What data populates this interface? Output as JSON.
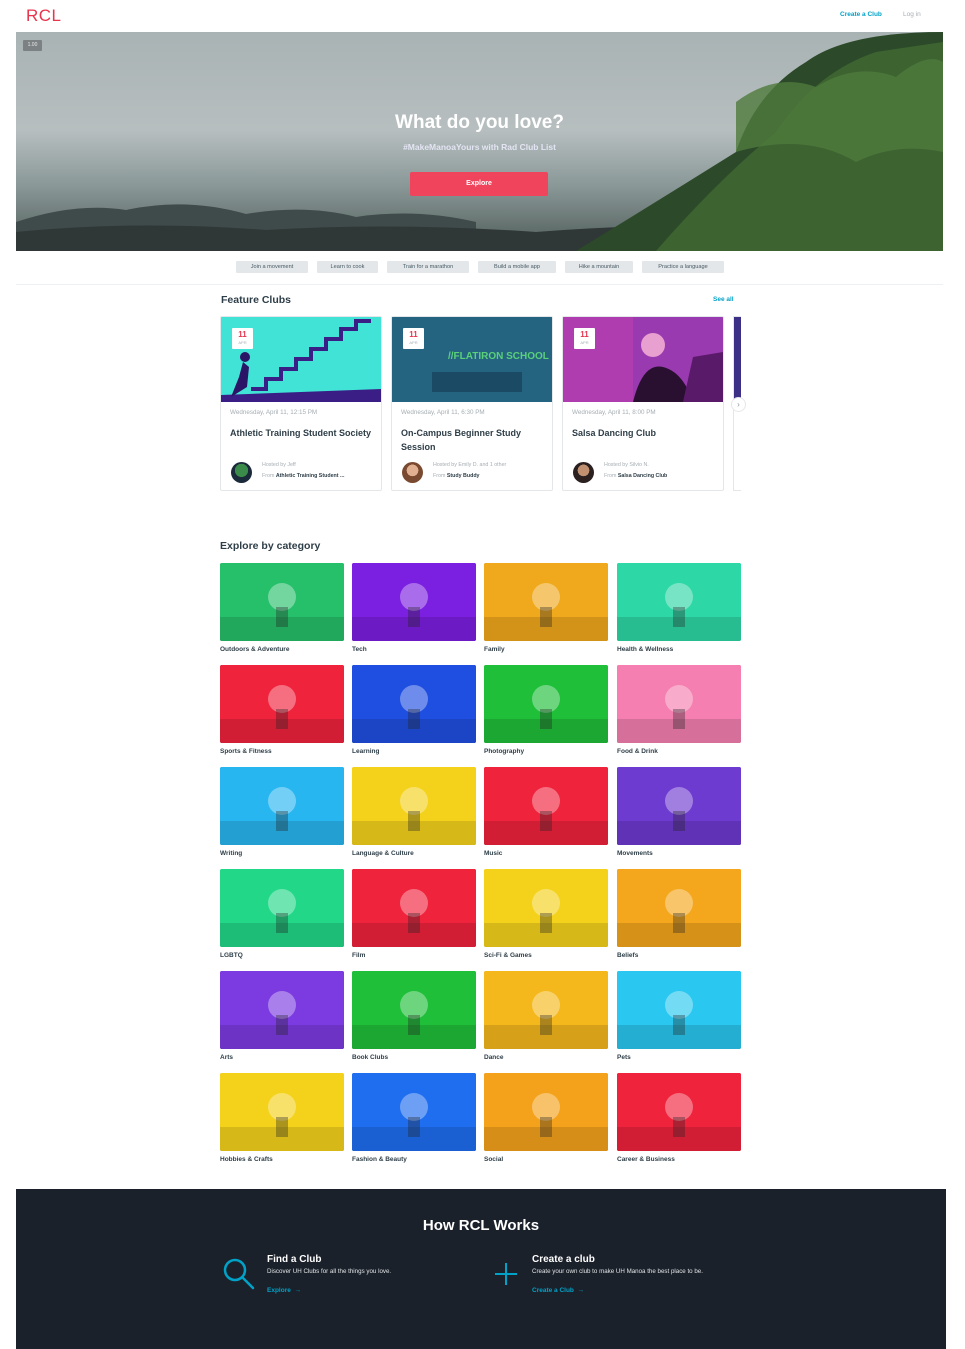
{
  "header": {
    "logo": "RCL",
    "create_club": "Create a Club",
    "login": "Log in"
  },
  "hero": {
    "zoom": "1.00",
    "title": "What do you love?",
    "subtitle": "#MakeManoaYours with Rad Club List",
    "button": "Explore"
  },
  "quick_links": [
    "Join a movement",
    "Learn to cook",
    "Train for a marathon",
    "Build a mobile app",
    "Hike a mountain",
    "Practice a language"
  ],
  "feature": {
    "title": "Feature Clubs",
    "see_all": "See all",
    "cards": [
      {
        "day": "11",
        "month": "APR",
        "when": "Wednesday, April 11, 12:15 PM",
        "name": "Athletic Training Student Society",
        "host": "Hosted by Jeff",
        "from_prefix": "From",
        "from": "Athletic Training Student ..."
      },
      {
        "day": "11",
        "month": "APR",
        "when": "Wednesday, April 11, 6:30 PM",
        "name": "On-Campus Beginner Study Session",
        "host": "Hosted by Emily D. and 1 other",
        "from_prefix": "From",
        "from": "Study Buddy",
        "image_text": "//FLATIRON SCHOOL"
      },
      {
        "day": "11",
        "month": "APR",
        "when": "Wednesday, April 11, 8:00 PM",
        "name": "Salsa Dancing Club",
        "host": "Hosted by Silvio N.",
        "from_prefix": "From",
        "from": "Salsa Dancing Club"
      }
    ],
    "next_icon": "chevron-right-icon"
  },
  "categories": {
    "title": "Explore by category",
    "items": [
      {
        "label": "Outdoors & Adventure",
        "color": "#27c06a"
      },
      {
        "label": "Tech",
        "color": "#7b1fe0"
      },
      {
        "label": "Family",
        "color": "#f0a81c"
      },
      {
        "label": "Health & Wellness",
        "color": "#2ed8a6"
      },
      {
        "label": "Sports & Fitness",
        "color": "#f0233d"
      },
      {
        "label": "Learning",
        "color": "#1f4fe0"
      },
      {
        "label": "Photography",
        "color": "#1fbf3a"
      },
      {
        "label": "Food & Drink",
        "color": "#f47fb0"
      },
      {
        "label": "Writing",
        "color": "#28b6f0"
      },
      {
        "label": "Language & Culture",
        "color": "#f4d21c"
      },
      {
        "label": "Music",
        "color": "#f0233d"
      },
      {
        "label": "Movements",
        "color": "#6e3bd0"
      },
      {
        "label": "LGBTQ",
        "color": "#22d888"
      },
      {
        "label": "Film",
        "color": "#f0233d"
      },
      {
        "label": "Sci-Fi & Games",
        "color": "#f4d21c"
      },
      {
        "label": "Beliefs",
        "color": "#f4a71c"
      },
      {
        "label": "Arts",
        "color": "#7c3be0"
      },
      {
        "label": "Book Clubs",
        "color": "#1fbf3a"
      },
      {
        "label": "Dance",
        "color": "#f4b81c"
      },
      {
        "label": "Pets",
        "color": "#2ac8f0"
      },
      {
        "label": "Hobbies & Crafts",
        "color": "#f4d21c"
      },
      {
        "label": "Fashion & Beauty",
        "color": "#1f6ef0"
      },
      {
        "label": "Social",
        "color": "#f4a21c"
      },
      {
        "label": "Career & Business",
        "color": "#f0233d"
      }
    ]
  },
  "how": {
    "title": "How RCL Works",
    "find": {
      "icon": "search-icon",
      "title": "Find a Club",
      "desc": "Discover UH Clubs for all the things you love.",
      "link": "Explore"
    },
    "create": {
      "icon": "plus-icon",
      "title": "Create a club",
      "desc": "Create your own club to make UH Manoa the best place to be.",
      "link": "Create a Club"
    }
  },
  "colors": {
    "brand": "#e8344e",
    "accent": "#00a2c7",
    "footer_bg": "#1b212b"
  }
}
